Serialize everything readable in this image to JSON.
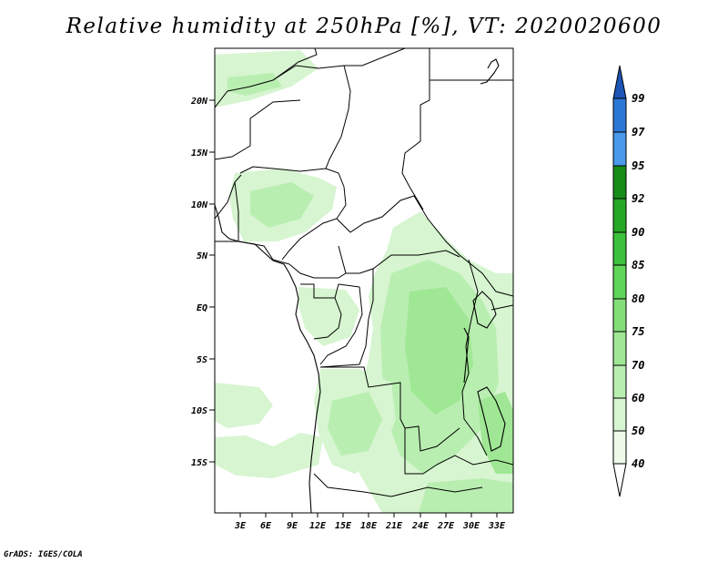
{
  "title": "Relative humidity at 250hPa [%], VT: 2020020600",
  "credit": "GrADS: IGES/COLA",
  "map": {
    "lat_labels": [
      "20N",
      "15N",
      "10N",
      "5N",
      "EQ",
      "5S",
      "10S",
      "15S"
    ],
    "lon_labels": [
      "3E",
      "6E",
      "9E",
      "12E",
      "15E",
      "18E",
      "21E",
      "24E",
      "27E",
      "30E",
      "33E"
    ]
  },
  "colorbar": {
    "levels": [
      "40",
      "50",
      "60",
      "70",
      "75",
      "80",
      "85",
      "90",
      "92",
      "95",
      "97",
      "99"
    ],
    "colors": {
      "below_40": "#ffffff",
      "40_50": "#edfaea",
      "50_60": "#d6f5d0",
      "60_70": "#b9eeb1",
      "70_75": "#a0e795",
      "75_80": "#84de77",
      "80_85": "#5fd65a",
      "85_90": "#3cc13c",
      "90_92": "#25a825",
      "92_95": "#168d16",
      "95_97": "#4a99ea",
      "97_99": "#2c78d6",
      "above_99": "#1c55b4"
    }
  }
}
